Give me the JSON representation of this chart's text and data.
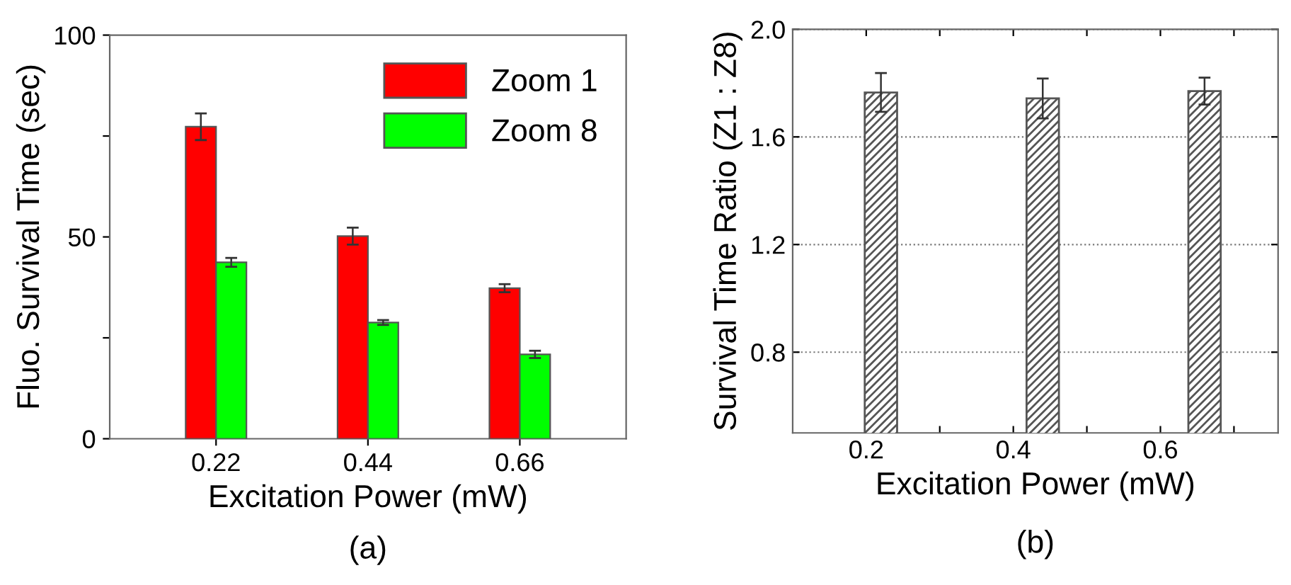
{
  "chart_data": [
    {
      "type": "bar",
      "categories": [
        "0.22",
        "0.44",
        "0.66"
      ],
      "xlabel": "Excitation Power (mW)",
      "ylabel": "Fluo. Survival Time (sec)",
      "ylim": [
        0,
        100
      ],
      "yticks": [
        0,
        {
          "value": 25,
          "label": null
        },
        50,
        {
          "value": 75,
          "label": null
        },
        100
      ],
      "grid": false,
      "legend": "top right",
      "annotations": [
        "(a)"
      ],
      "series": [
        {
          "name": "Zoom 1",
          "color": "#ff0000",
          "values": [
            77.3,
            50.2,
            37.3
          ],
          "errors": [
            3.3,
            2.1,
            1.0
          ]
        },
        {
          "name": "Zoom 8",
          "color": "#00ff00",
          "values": [
            43.7,
            28.8,
            20.9
          ],
          "errors": [
            1.1,
            0.6,
            0.9
          ]
        }
      ]
    },
    {
      "type": "bar",
      "x": [
        0.22,
        0.44,
        0.66
      ],
      "xlabel": "Excitation Power (mW)",
      "ylabel": "Survival Time Ratio (Z1 : Z8)",
      "xlim": [
        0.1,
        0.76
      ],
      "xticks": [
        0.2,
        {
          "value": 0.3,
          "label": null
        },
        0.4,
        {
          "value": 0.5,
          "label": null
        },
        0.6,
        {
          "value": 0.7,
          "label": null
        }
      ],
      "ylim": [
        0.5,
        2.0
      ],
      "yticks": [
        0.8,
        1.2,
        1.6,
        {
          "value": 2.0,
          "label": "2.0"
        }
      ],
      "grid": "y",
      "annotations": [
        "(b)"
      ],
      "series": [
        {
          "color": "#555555",
          "values": [
            1.765,
            1.743,
            1.77
          ],
          "errors": [
            0.072,
            0.074,
            0.05
          ]
        }
      ]
    }
  ]
}
